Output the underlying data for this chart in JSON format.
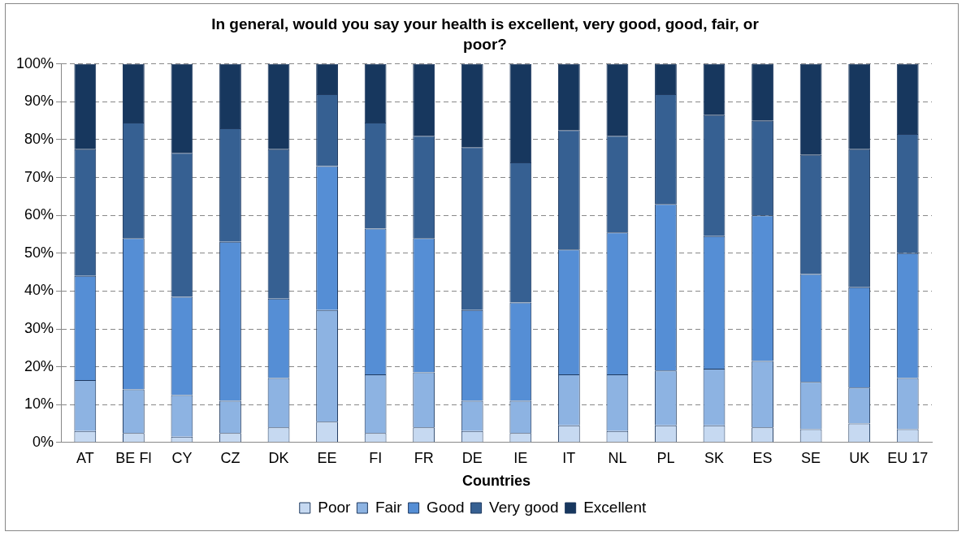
{
  "chart_data": {
    "type": "bar",
    "title": "In general, would you say your health is excellent, very good, good, fair, or poor?",
    "xlabel": "Countries",
    "categories": [
      "AT",
      "BE Fl",
      "CY",
      "CZ",
      "DK",
      "EE",
      "FI",
      "FR",
      "DE",
      "IE",
      "IT",
      "NL",
      "PL",
      "SK",
      "ES",
      "SE",
      "UK",
      "EU 17"
    ],
    "stacked": true,
    "series": [
      {
        "name": "Poor",
        "color": "#c6d9f1",
        "values": [
          3,
          2.5,
          1.5,
          2.5,
          4,
          5.5,
          2.5,
          4,
          3,
          2.5,
          4.5,
          3,
          4.5,
          4.5,
          4,
          3.5,
          5,
          3.5
        ]
      },
      {
        "name": "Fair",
        "color": "#8db3e2",
        "values": [
          13.5,
          11.5,
          11,
          8.5,
          13,
          29.5,
          15.5,
          14.5,
          8,
          8.5,
          13.5,
          15,
          14.5,
          15,
          17.5,
          12.5,
          9.5,
          13.5
        ]
      },
      {
        "name": "Good",
        "color": "#558ed5",
        "values": [
          27.5,
          40,
          26,
          42,
          21,
          38,
          38.5,
          35.5,
          24,
          26,
          33,
          37.5,
          44,
          35,
          38.5,
          28.5,
          26.5,
          33
        ]
      },
      {
        "name": "Very good",
        "color": "#366092",
        "values": [
          33.5,
          30.5,
          38,
          30,
          39.5,
          19,
          28,
          27,
          43,
          37,
          31.5,
          25.5,
          29,
          32,
          25,
          31.5,
          36.5,
          31.5
        ]
      },
      {
        "name": "Excellent",
        "color": "#17375e",
        "values": [
          22.5,
          15.5,
          23.5,
          17,
          22.5,
          8,
          15.5,
          19,
          22,
          26,
          17.5,
          19,
          8,
          13.5,
          15,
          24,
          22.5,
          18.5
        ]
      }
    ],
    "ylim": [
      0,
      100
    ],
    "yticks": [
      {
        "value": 0,
        "label": "0%"
      },
      {
        "value": 10,
        "label": "10%"
      },
      {
        "value": 20,
        "label": "20%"
      },
      {
        "value": 30,
        "label": "30%"
      },
      {
        "value": 40,
        "label": "40%"
      },
      {
        "value": 50,
        "label": "50%"
      },
      {
        "value": 60,
        "label": "60%"
      },
      {
        "value": 70,
        "label": "70%"
      },
      {
        "value": 80,
        "label": "80%"
      },
      {
        "value": 90,
        "label": "90%"
      },
      {
        "value": 100,
        "label": "100%"
      }
    ],
    "grid": "y",
    "legend": "bottom"
  }
}
